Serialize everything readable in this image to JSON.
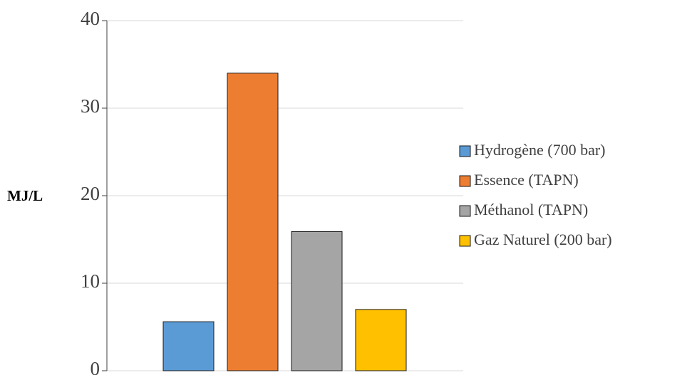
{
  "chart_data": {
    "type": "bar",
    "y_label": "MJ/L",
    "categories": [
      null
    ],
    "series": [
      {
        "name": "Hydrogène (700 bar)",
        "color": "#5b9bd5",
        "values": [
          5.6
        ]
      },
      {
        "name": "Essence (TAPN)",
        "color": "#ed7d31",
        "values": [
          34
        ]
      },
      {
        "name": "Méthanol (TAPN)",
        "color": "#a5a5a5",
        "values": [
          15.9
        ]
      },
      {
        "name": "Gaz Naturel (200 bar)",
        "color": "#ffc000",
        "values": [
          7
        ]
      }
    ],
    "ylim": [
      0,
      40
    ],
    "yticks": [
      0,
      10,
      20,
      30,
      40
    ],
    "grid": true,
    "legend": "right"
  }
}
